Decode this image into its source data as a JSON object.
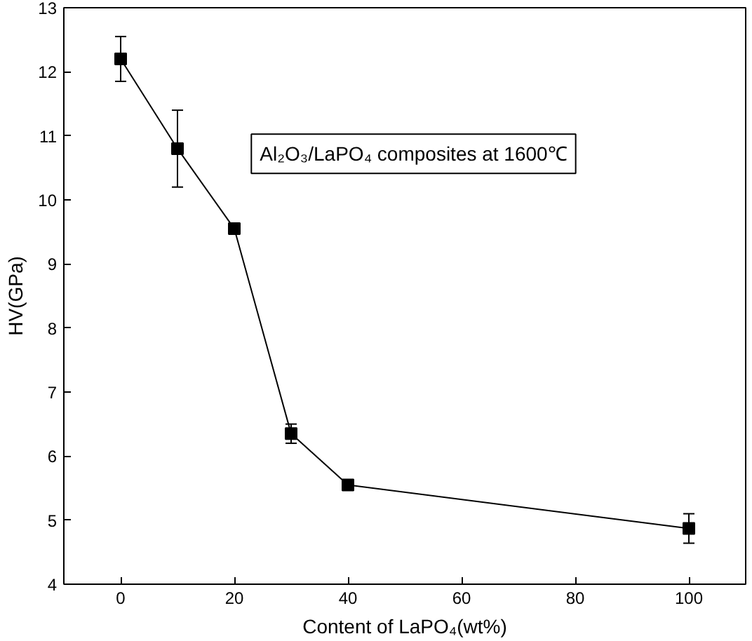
{
  "chart_data": {
    "type": "line",
    "xlabel": "Content of LaPO₄(wt%)",
    "ylabel": "HV(GPa)",
    "annotations": [
      "Al₂O₃/LaPO₄ composites at 1600℃"
    ],
    "x": [
      0,
      10,
      20,
      30,
      40,
      100
    ],
    "series": [
      {
        "color": "#000000",
        "values": [
          12.2,
          10.8,
          9.55,
          6.35,
          5.55,
          4.87
        ],
        "errors": [
          0.35,
          0.6,
          0.06,
          0.15,
          0.03,
          0.23
        ]
      }
    ],
    "xlim": [
      -10,
      110
    ],
    "xticks": [
      0,
      20,
      40,
      60,
      80,
      100
    ],
    "ylim": [
      4,
      13
    ],
    "yticks": [
      4,
      5,
      6,
      7,
      8,
      9,
      10,
      11,
      12,
      13
    ],
    "marker": "square",
    "line_style": "solid",
    "grid": false
  }
}
